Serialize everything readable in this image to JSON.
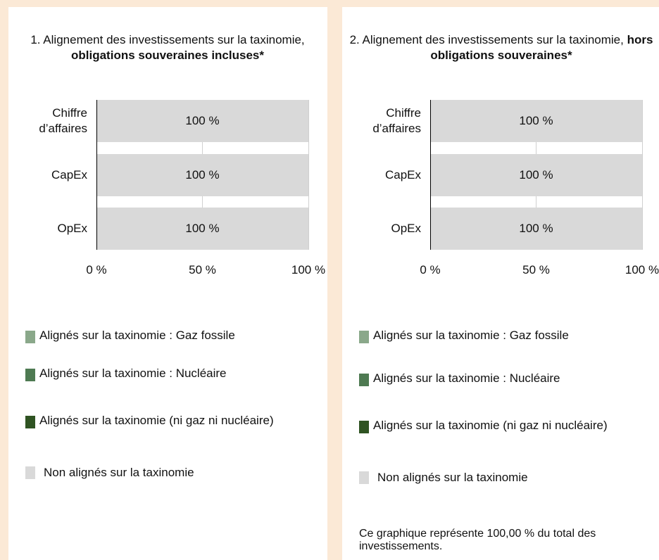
{
  "chart_data": [
    {
      "type": "bar",
      "orientation": "horizontal",
      "stacked": true,
      "title": {
        "text": "1. Alignement des investissements sur la taxinomie, ",
        "bold": "obligations souveraines incluses*"
      },
      "categories": [
        "Chiffre d’affaires",
        "CapEx",
        "OpEx"
      ],
      "series": [
        {
          "name": "Alignés sur la taxinomie : Gaz fossile",
          "color": "#8aa88a",
          "values": [
            0,
            0,
            0
          ]
        },
        {
          "name": "Alignés sur la taxinomie : Nucléaire",
          "color": "#4e7a52",
          "values": [
            0,
            0,
            0
          ]
        },
        {
          "name": "Alignés sur la taxinomie (ni gaz ni nucléaire)",
          "color": "#2f5322",
          "values": [
            0,
            0,
            0
          ]
        },
        {
          "name": "Non alignés sur la taxinomie",
          "color": "#d9d9d9",
          "values": [
            100,
            100,
            100
          ],
          "value_labels": [
            "100 %",
            "100 %",
            "100 %"
          ]
        }
      ],
      "xlim": [
        0,
        100
      ],
      "xticks": [
        {
          "value": 0,
          "label": "0 %"
        },
        {
          "value": 50,
          "label": "50 %"
        },
        {
          "value": 100,
          "label": "100 %"
        }
      ],
      "grid": true,
      "legend": "bottom"
    },
    {
      "type": "bar",
      "orientation": "horizontal",
      "stacked": true,
      "title": {
        "text": "2. Alignement des investissements sur la taxinomie, ",
        "bold": "hors obligations souveraines*"
      },
      "categories": [
        "Chiffre d’affaires",
        "CapEx",
        "OpEx"
      ],
      "series": [
        {
          "name": "Alignés sur la taxinomie : Gaz fossile",
          "color": "#8aa88a",
          "values": [
            0,
            0,
            0
          ]
        },
        {
          "name": "Alignés sur la taxinomie : Nucléaire",
          "color": "#4e7a52",
          "values": [
            0,
            0,
            0
          ]
        },
        {
          "name": "Alignés sur la taxinomie (ni gaz ni nucléaire)",
          "color": "#2f5322",
          "values": [
            0,
            0,
            0
          ]
        },
        {
          "name": "Non alignés sur la taxinomie",
          "color": "#d9d9d9",
          "values": [
            100,
            100,
            100
          ],
          "value_labels": [
            "100 %",
            "100 %",
            "100 %"
          ]
        }
      ],
      "xlim": [
        0,
        100
      ],
      "xticks": [
        {
          "value": 0,
          "label": "0 %"
        },
        {
          "value": 50,
          "label": "50 %"
        },
        {
          "value": 100,
          "label": "100 %"
        }
      ],
      "grid": true,
      "legend": "bottom",
      "note": "Ce graphique représente 100,00 % du total des investissements."
    }
  ]
}
